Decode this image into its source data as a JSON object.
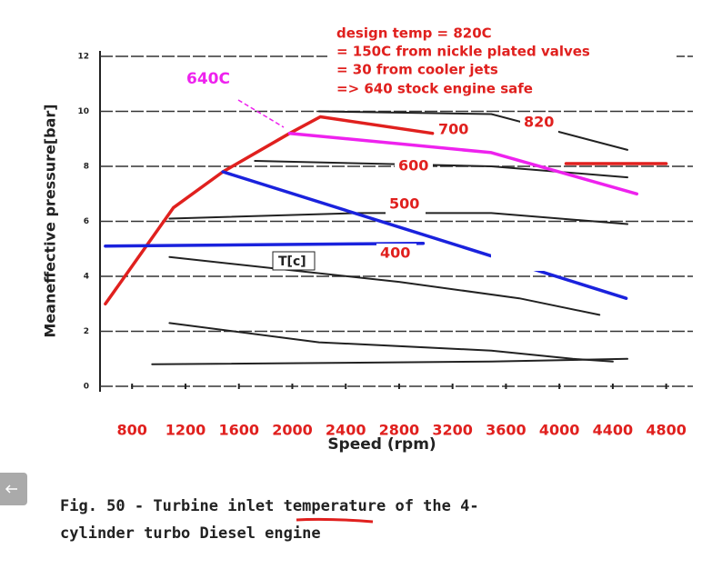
{
  "chart_data": {
    "type": "line",
    "x_label": "Speed (rpm)",
    "y_label": "Meaneffective pressure[bar]",
    "caption": [
      "Fig. 50 - Turbine inlet temperature of the 4-",
      "cylinder turbo Diesel engine"
    ],
    "annotations": [
      "design temp = 820C",
      "= 150C from nickle plated valves",
      "= 30 from cooler jets",
      "=> 640 stock engine safe",
      "640C",
      "700",
      "820",
      "600",
      "500",
      "400",
      "T[c]"
    ],
    "xlim": [
      560,
      5000
    ],
    "ylim": [
      0,
      12
    ],
    "xticks": [
      800,
      1200,
      1600,
      2000,
      2400,
      2800,
      3200,
      3600,
      4000,
      4400,
      4800
    ],
    "yticks": [
      0,
      2,
      4,
      6,
      8,
      10,
      12
    ],
    "grid": true,
    "series": [
      {
        "color": "#222222",
        "x": [
          2200,
          3490,
          4510
        ],
        "values": [
          10.0,
          9.9,
          8.6
        ]
      },
      {
        "color": "#222222",
        "x": [
          1720,
          3490,
          4510
        ],
        "values": [
          8.2,
          8.0,
          7.6
        ]
      },
      {
        "color": "#222222",
        "x": [
          1080,
          2500,
          3490,
          4510
        ],
        "values": [
          6.1,
          6.3,
          6.3,
          5.9
        ]
      },
      {
        "color": "#222222",
        "x": [
          1080,
          2800,
          3700,
          4300
        ],
        "values": [
          4.7,
          3.8,
          3.2,
          2.6
        ]
      },
      {
        "color": "#222222",
        "x": [
          1080,
          2200,
          3490,
          4100,
          4400
        ],
        "values": [
          2.3,
          1.6,
          1.3,
          1.0,
          0.9
        ]
      },
      {
        "color": "#222222",
        "x": [
          950,
          3490,
          4510
        ],
        "values": [
          0.8,
          0.9,
          1.0
        ]
      },
      {
        "color": "#e0201e",
        "x": [
          600,
          1110,
          1480,
          1980,
          2210,
          3050
        ],
        "values": [
          3.0,
          6.5,
          7.8,
          9.2,
          9.8,
          9.2
        ]
      },
      {
        "color": "#e0201e",
        "x": [
          4050,
          4800
        ],
        "values": [
          8.1,
          8.1
        ]
      },
      {
        "color": "#ee22ee",
        "x": [
          1980,
          3490,
          4580
        ],
        "values": [
          9.2,
          8.5,
          7.0
        ]
      },
      {
        "color": "#1a22dd",
        "x": [
          1480,
          4500
        ],
        "values": [
          7.8,
          3.2
        ]
      },
      {
        "color": "#1a22dd",
        "x": [
          600,
          2980
        ],
        "values": [
          5.1,
          5.2
        ]
      }
    ]
  }
}
